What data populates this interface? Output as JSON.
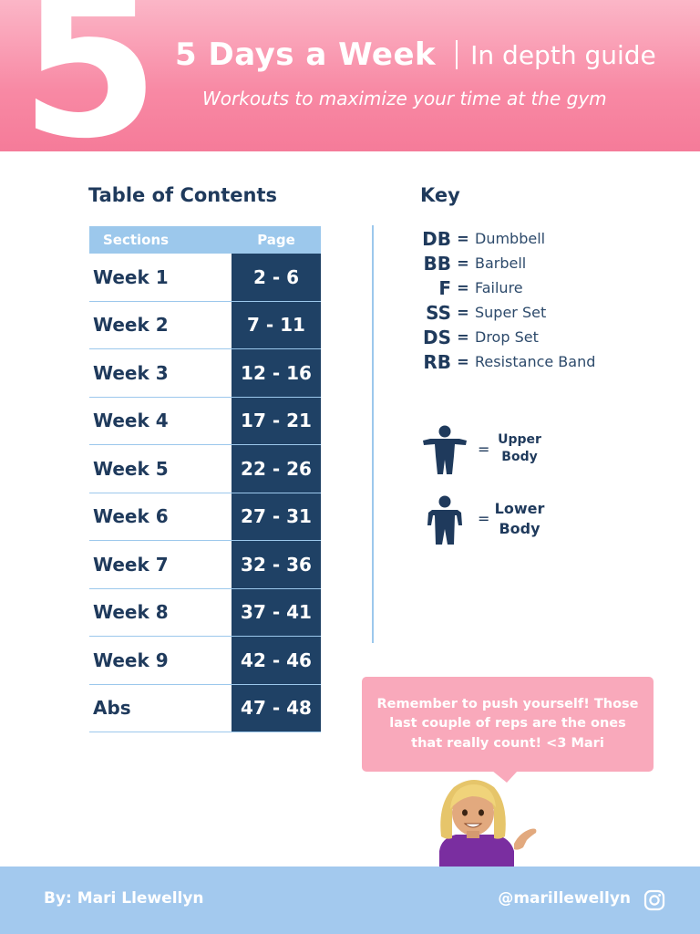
{
  "header": {
    "big_number": "5",
    "title": "5 Days a Week",
    "subtitle": "In depth guide",
    "tagline": "Workouts to maximize your time at the gym",
    "gradient_top": "#fbb6c7",
    "gradient_bottom": "#f57b99"
  },
  "toc": {
    "heading": "Table of Contents",
    "col_sections": "Sections",
    "col_page": "Page",
    "rows": [
      {
        "section": "Week 1",
        "pages": "2 - 6"
      },
      {
        "section": "Week 2",
        "pages": "7 - 11"
      },
      {
        "section": "Week 3",
        "pages": "12 - 16"
      },
      {
        "section": "Week 4",
        "pages": "17 - 21"
      },
      {
        "section": "Week 5",
        "pages": "22 - 26"
      },
      {
        "section": "Week 6",
        "pages": "27 - 31"
      },
      {
        "section": "Week 7",
        "pages": "32 - 36"
      },
      {
        "section": "Week 8",
        "pages": "37 - 41"
      },
      {
        "section": "Week 9",
        "pages": "42 - 46"
      },
      {
        "section": "Abs",
        "pages": "47 - 48"
      }
    ]
  },
  "key": {
    "heading": "Key",
    "equals": "=",
    "items": [
      {
        "abbr": "DB",
        "meaning": "Dumbbell"
      },
      {
        "abbr": "BB",
        "meaning": "Barbell"
      },
      {
        "abbr": "F",
        "meaning": "Failure"
      },
      {
        "abbr": "SS",
        "meaning": "Super Set"
      },
      {
        "abbr": "DS",
        "meaning": "Drop Set"
      },
      {
        "abbr": "RB",
        "meaning": "Resistance Band"
      }
    ],
    "upper_icon": "upper-body-figure-icon",
    "upper_label_1": "Upper",
    "upper_label_2": "Body",
    "lower_icon": "lower-body-figure-icon",
    "lower_label_1": "Lower",
    "lower_label_2": "Body"
  },
  "bubble": {
    "line1": "Remember to push yourself! Those",
    "line2": "last couple of reps are the ones",
    "line3": "that really count! <3 Mari",
    "emoji": "woman-tipping-hand-emoji"
  },
  "footer": {
    "author": "By: Mari Llewellyn",
    "handle": "@marillewellyn",
    "social_icon": "instagram-icon"
  },
  "colors": {
    "navy": "#1f4165",
    "light_blue": "#9cc8ec",
    "pink": "#f9a9bb"
  }
}
